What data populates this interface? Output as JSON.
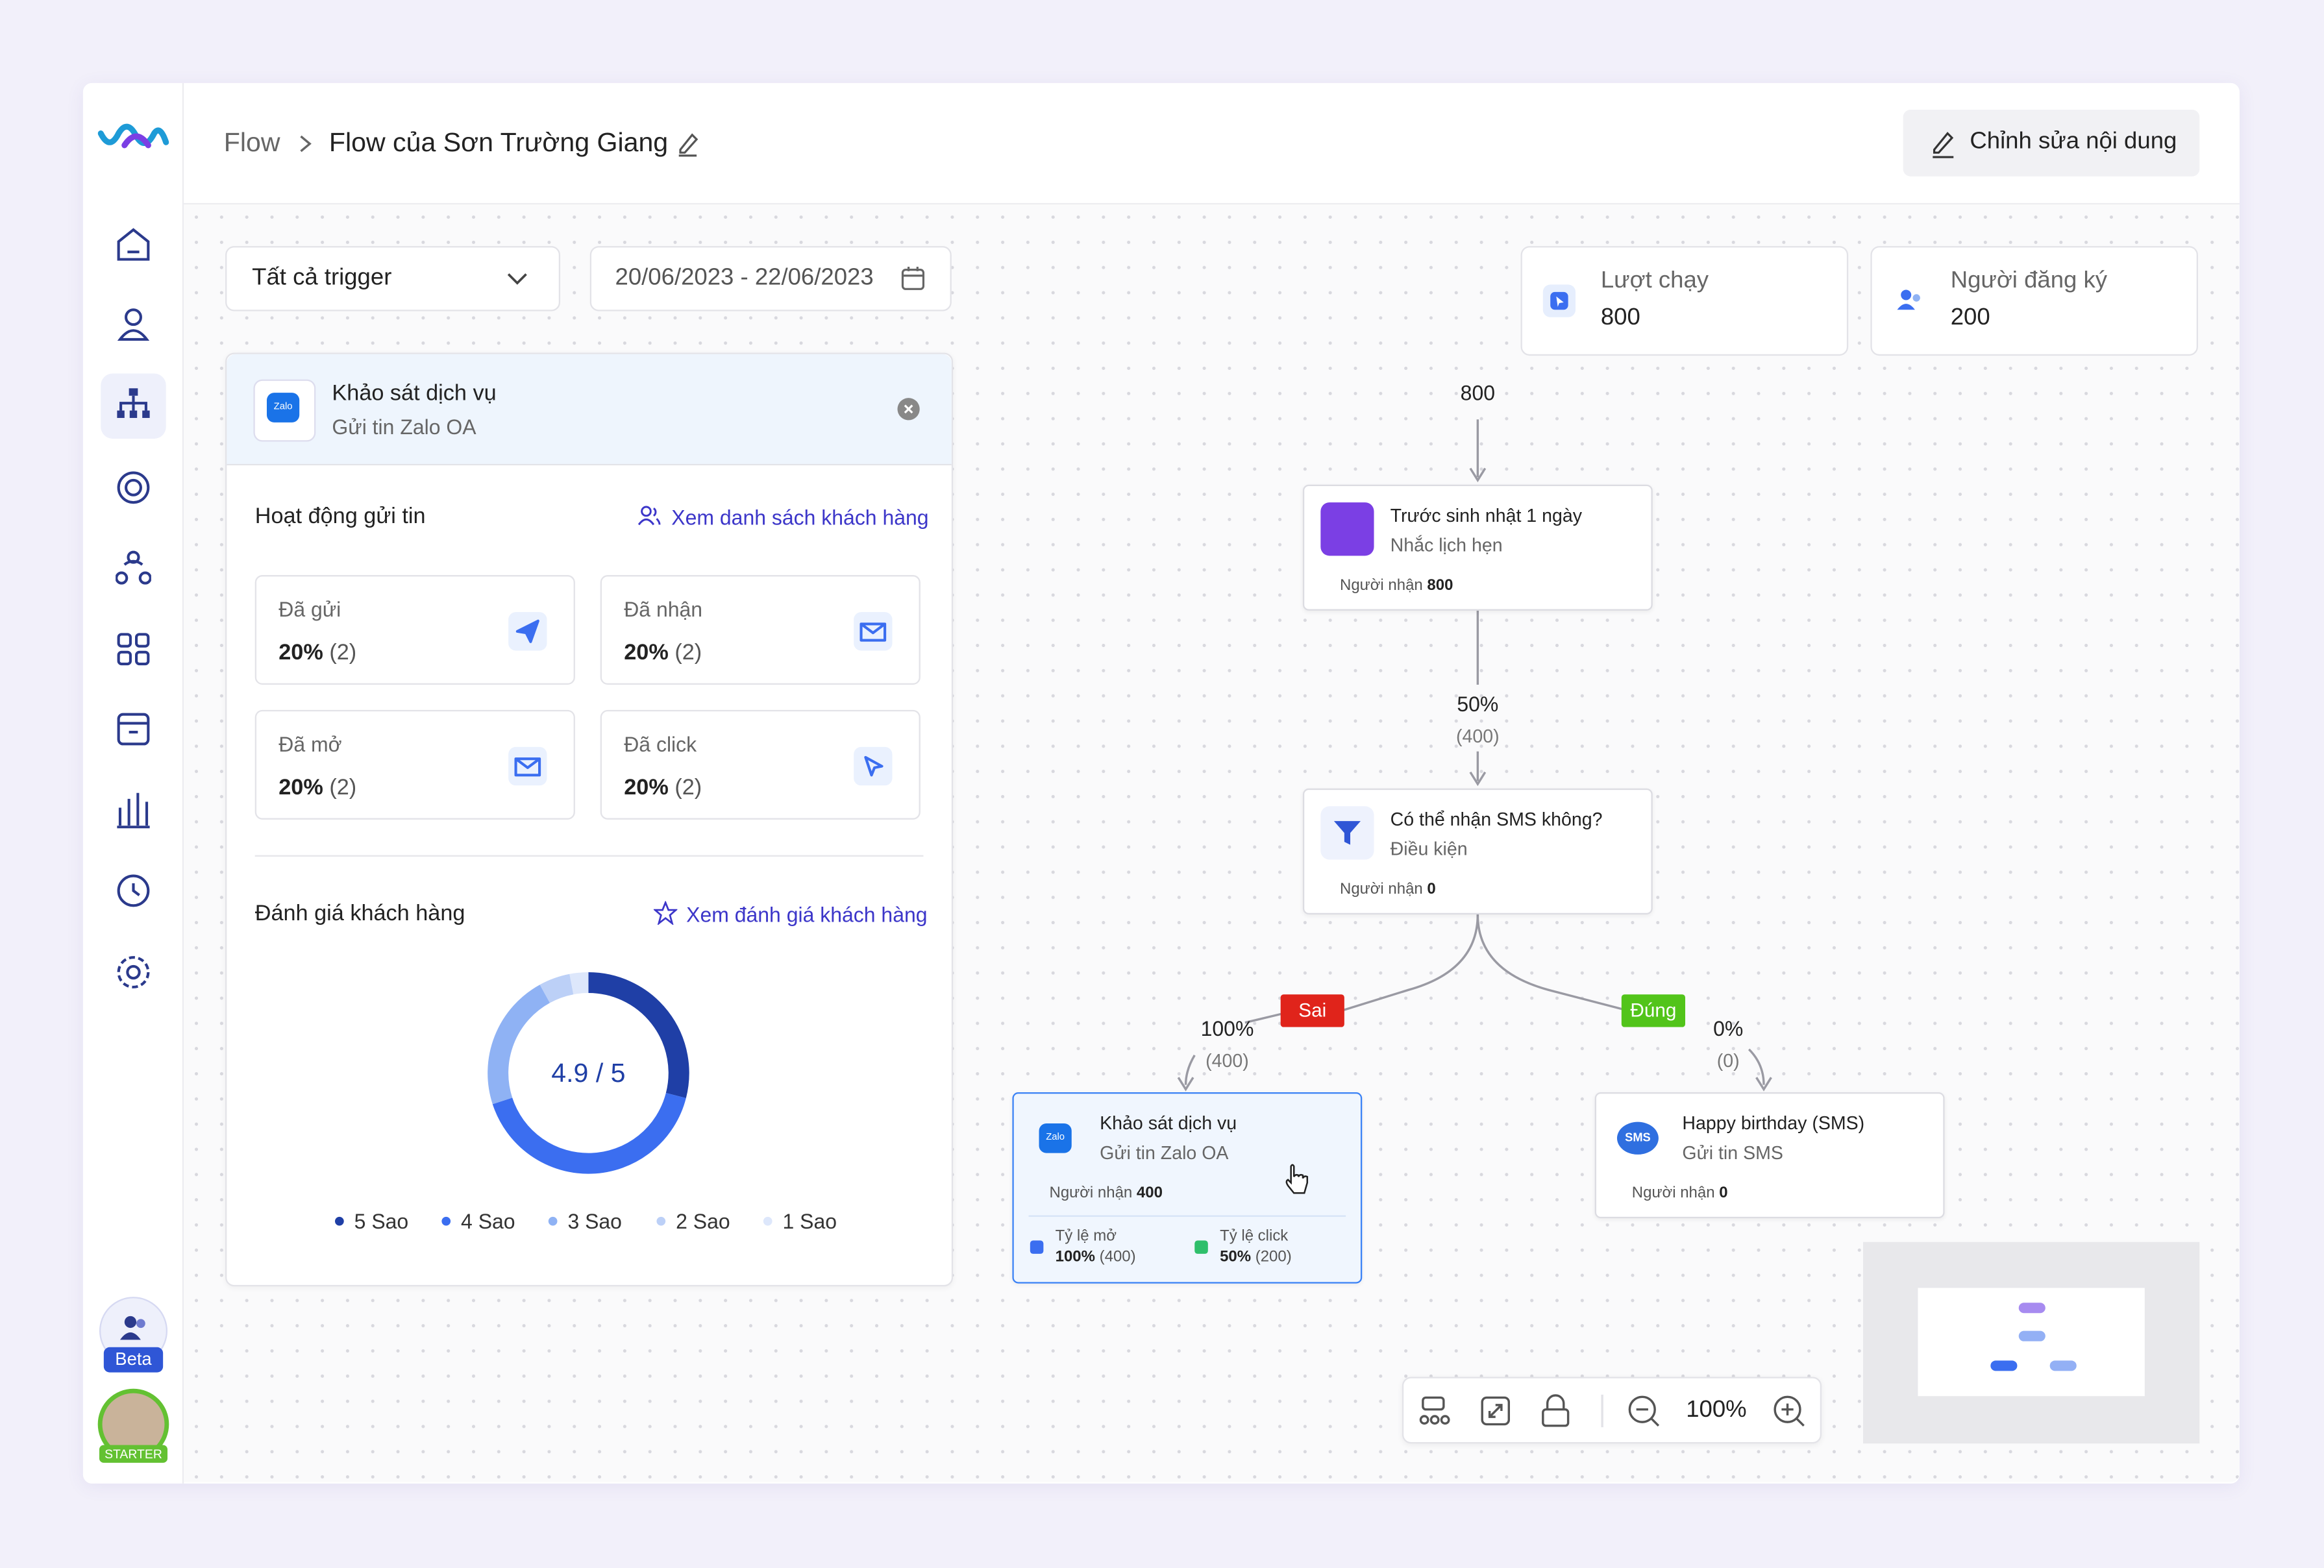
{
  "breadcrumb": {
    "root": "Flow",
    "current": "Flow của Sơn Trường Giang"
  },
  "edit_button": "Chỉnh sửa nội dung",
  "filters": {
    "trigger": "Tất cả trigger",
    "date_range": "20/06/2023 - 22/06/2023"
  },
  "stats": [
    {
      "label": "Lượt chạy",
      "value": "800"
    },
    {
      "label": "Người đăng ký",
      "value": "200"
    }
  ],
  "panel": {
    "icon": "Zalo",
    "title": "Khảo sát dịch vụ",
    "subtitle": "Gửi tin Zalo OA",
    "activity": {
      "title": "Hoạt động gửi tin",
      "link": "Xem danh sách khách hàng",
      "metrics": [
        {
          "label": "Đã gửi",
          "percent": "20%",
          "count": "(2)"
        },
        {
          "label": "Đã nhận",
          "percent": "20%",
          "count": "(2)"
        },
        {
          "label": "Đã mở",
          "percent": "20%",
          "count": "(2)"
        },
        {
          "label": "Đã click",
          "percent": "20%",
          "count": "(2)"
        }
      ]
    },
    "rating": {
      "title": "Đánh giá khách hàng",
      "link": "Xem đánh giá khách hàng",
      "score": "4.9 / 5"
    }
  },
  "chart_data": {
    "type": "donut",
    "series": [
      {
        "name": "5 Sao",
        "color": "#1f3fa6",
        "value": 29
      },
      {
        "name": "4 Sao",
        "color": "#3b6ef0",
        "value": 41
      },
      {
        "name": "3 Sao",
        "color": "#8fb2f4",
        "value": 22
      },
      {
        "name": "2 Sao",
        "color": "#bcd0f7",
        "value": 5
      },
      {
        "name": "1 Sao",
        "color": "#dde7fb",
        "value": 3
      }
    ]
  },
  "flow": {
    "entry_count": "800",
    "nodes": [
      {
        "title": "Trước sinh nhật 1 ngày",
        "subtitle": "Nhắc lịch hẹn",
        "recipients_label": "Người nhận",
        "recipients": "800"
      },
      {
        "title": "Có thể nhận SMS không?",
        "subtitle": "Điều kiện",
        "recipients_label": "Người nhận",
        "recipients": "0"
      },
      {
        "icon": "Zalo",
        "title": "Khảo sát dịch vụ",
        "subtitle": "Gửi tin Zalo OA",
        "recipients_label": "Người nhận",
        "recipients": "400",
        "rates": [
          {
            "label": "Tỷ lệ mở",
            "percent": "100%",
            "count": "(400)"
          },
          {
            "label": "Tỷ lệ click",
            "percent": "50%",
            "count": "(200)"
          }
        ]
      },
      {
        "icon": "SMS",
        "title": "Happy birthday (SMS)",
        "subtitle": "Gửi tin SMS",
        "recipients_label": "Người nhận",
        "recipients": "0"
      }
    ],
    "edges": [
      {
        "percent": "50%",
        "count": "(400)"
      },
      {
        "tag": "Sai",
        "percent": "100%",
        "count": "(400)"
      },
      {
        "tag": "Đúng",
        "percent": "0%",
        "count": "(0)"
      }
    ]
  },
  "zoom": "100%",
  "sidebar": {
    "beta": "Beta",
    "plan": "STARTER"
  }
}
